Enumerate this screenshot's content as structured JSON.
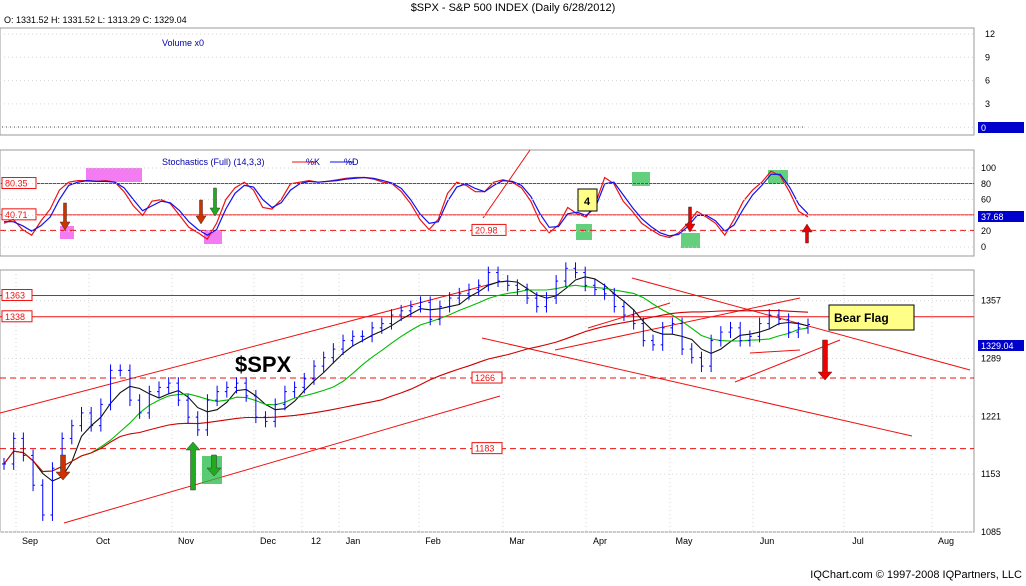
{
  "header": {
    "title": "$SPX - S&P 500 INDEX (Daily 6/28/2012)",
    "ohlc": "O: 1331.52   H: 1331.52   L: 1313.29   C: 1329.04"
  },
  "footer": {
    "credit": "IQChart.com © 1997-2008 IQPartners, LLC"
  },
  "colors": {
    "up_bar": "#0000ff",
    "down_bar": "#0000ff",
    "trend_line": "#ee1111",
    "ma_short": "#111111",
    "ma_mid": "#00bb00",
    "ma_long": "#cc0000",
    "stoch_k": "#ee1111",
    "stoch_d": "#1111ee",
    "grid": "#d6d6d6",
    "highlight_pink": "#ee44ee",
    "highlight_green": "#22bb44",
    "note_yellow": "#ffff88",
    "tag_blue": "#0000cc"
  },
  "chart_data": [
    {
      "type": "bar",
      "panel": "volume",
      "title": "Volume x0",
      "ylim": [
        0,
        12
      ],
      "yticks": [
        "12",
        "9",
        "6",
        "3",
        "0"
      ],
      "last_value_tag": "0",
      "values": []
    },
    {
      "type": "line",
      "panel": "stochastics",
      "title": "Stochastics (Full) (14,3,3)",
      "legend": [
        "%K",
        "%D"
      ],
      "ylim": [
        0,
        100
      ],
      "yticks": [
        "100",
        "80",
        "60",
        "40",
        "20",
        "0"
      ],
      "level_labels": [
        "80.35",
        "40.71",
        "20.98"
      ],
      "levels": [
        80.35,
        40.71,
        20.98
      ],
      "last_value_tag": "37.68",
      "annotation_box": "4",
      "series": [
        {
          "name": "%K",
          "values": [
            30,
            35,
            22,
            15,
            33,
            48,
            72,
            82,
            84,
            84,
            83,
            84,
            82,
            70,
            52,
            40,
            58,
            60,
            55,
            40,
            25,
            18,
            10,
            30,
            60,
            75,
            82,
            72,
            50,
            48,
            60,
            80,
            82,
            84,
            82,
            83,
            85,
            87,
            88,
            88,
            86,
            82,
            80,
            70,
            55,
            35,
            22,
            35,
            68,
            82,
            78,
            70,
            70,
            82,
            85,
            82,
            75,
            58,
            32,
            18,
            28,
            50,
            42,
            38,
            55,
            88,
            80,
            58,
            45,
            30,
            22,
            15,
            12,
            18,
            30,
            45,
            38,
            30,
            15,
            35,
            58,
            72,
            82,
            96,
            90,
            70,
            45,
            38
          ]
        },
        {
          "name": "%D",
          "values": [
            32,
            32,
            27,
            20,
            27,
            38,
            60,
            78,
            82,
            84,
            83,
            83,
            82,
            75,
            60,
            46,
            52,
            58,
            56,
            46,
            32,
            22,
            15,
            22,
            48,
            68,
            78,
            76,
            60,
            50,
            56,
            72,
            80,
            83,
            82,
            83,
            84,
            86,
            87,
            88,
            87,
            84,
            81,
            74,
            60,
            42,
            30,
            32,
            58,
            76,
            80,
            74,
            70,
            78,
            84,
            83,
            78,
            64,
            42,
            25,
            26,
            42,
            44,
            40,
            50,
            80,
            82,
            66,
            50,
            36,
            26,
            18,
            14,
            16,
            26,
            40,
            40,
            33,
            20,
            28,
            48,
            66,
            78,
            92,
            92,
            76,
            54,
            42
          ]
        }
      ]
    },
    {
      "type": "line",
      "panel": "price",
      "title": "$SPX",
      "ylim": [
        1085,
        1393
      ],
      "yticks": [
        "1357",
        "1289",
        "1221",
        "1153",
        "1085"
      ],
      "xticks": [
        "Sep",
        "Oct",
        "Nov",
        "Dec",
        "12",
        "Jan",
        "Feb",
        "Mar",
        "Apr",
        "May",
        "Jun",
        "Jul",
        "Aug"
      ],
      "level_labels": [
        "1363",
        "1338",
        "1266",
        "1183"
      ],
      "levels": [
        1363,
        1338,
        1266,
        1183
      ],
      "last_value_tag": "1329.04",
      "annotations": [
        "Bear Flag"
      ],
      "series": [
        {
          "name": "close",
          "values": [
            1165,
            1195,
            1175,
            1140,
            1105,
            1160,
            1195,
            1210,
            1225,
            1210,
            1235,
            1275,
            1275,
            1240,
            1225,
            1250,
            1255,
            1260,
            1240,
            1220,
            1205,
            1240,
            1250,
            1255,
            1260,
            1245,
            1220,
            1215,
            1235,
            1250,
            1255,
            1265,
            1280,
            1290,
            1300,
            1310,
            1315,
            1315,
            1325,
            1330,
            1340,
            1345,
            1350,
            1355,
            1335,
            1350,
            1360,
            1365,
            1370,
            1375,
            1390,
            1380,
            1375,
            1370,
            1360,
            1350,
            1360,
            1380,
            1395,
            1390,
            1375,
            1370,
            1365,
            1350,
            1340,
            1330,
            1310,
            1305,
            1325,
            1330,
            1300,
            1290,
            1280,
            1310,
            1320,
            1325,
            1310,
            1315,
            1330,
            1340,
            1335,
            1320,
            1325,
            1329
          ]
        }
      ]
    }
  ]
}
